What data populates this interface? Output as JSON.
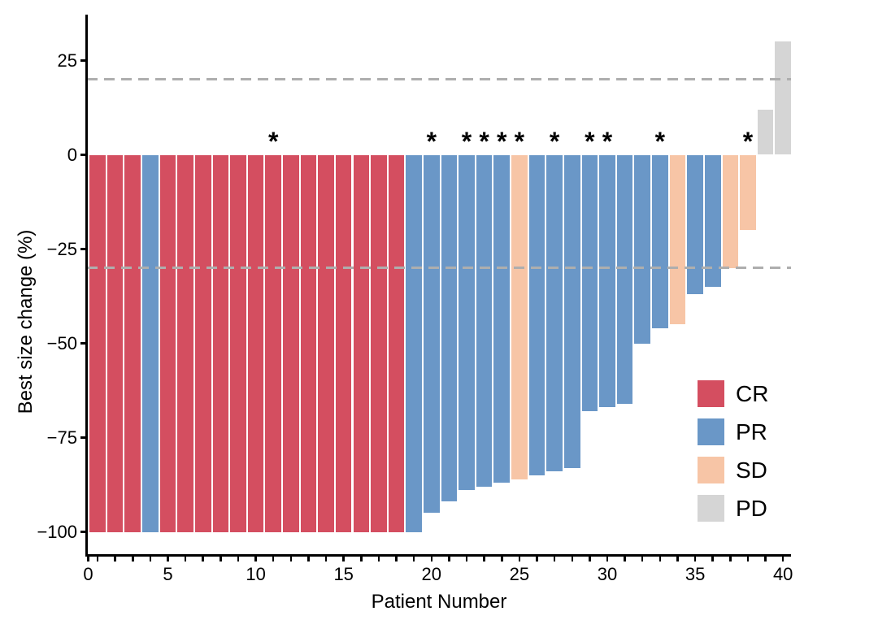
{
  "chart_data": {
    "type": "bar",
    "subtype": "waterfall",
    "title": "",
    "xlabel": "Patient Number",
    "ylabel": "Best size change (%)",
    "x_tick_values": [
      0,
      5,
      10,
      15,
      20,
      25,
      30,
      35,
      40
    ],
    "x_ticks": [
      "0",
      "5",
      "10",
      "15",
      "20",
      "25",
      "30",
      "35",
      "40"
    ],
    "y_tick_values": [
      25,
      0,
      -25,
      -50,
      -75,
      -100
    ],
    "y_ticks": [
      "25",
      "0",
      "−25",
      "−50",
      "−75",
      "−100"
    ],
    "xlim": [
      0,
      40.6
    ],
    "ylim": [
      -106,
      37
    ],
    "grid": false,
    "legend_position": "inside-right",
    "annotation_symbol": "*",
    "reference_lines": [
      {
        "y": 20,
        "style": "dashed",
        "color": "#aeaeae"
      },
      {
        "y": -30,
        "style": "dashed",
        "color": "#aeaeae"
      }
    ],
    "legend": [
      {
        "label": "CR",
        "color": "#d44e60"
      },
      {
        "label": "PR",
        "color": "#6a97c7"
      },
      {
        "label": "SD",
        "color": "#f7c5a6"
      },
      {
        "label": "PD",
        "color": "#d5d5d5"
      }
    ],
    "colors": {
      "CR": "#d44e60",
      "PR": "#6a97c7",
      "SD": "#f7c5a6",
      "PD": "#d5d5d5"
    },
    "patients": [
      {
        "patient": 1,
        "change": -100,
        "response": "CR",
        "starred": false
      },
      {
        "patient": 2,
        "change": -100,
        "response": "CR",
        "starred": false
      },
      {
        "patient": 3,
        "change": -100,
        "response": "CR",
        "starred": false
      },
      {
        "patient": 4,
        "change": -100,
        "response": "PR",
        "starred": false
      },
      {
        "patient": 5,
        "change": -100,
        "response": "CR",
        "starred": false
      },
      {
        "patient": 6,
        "change": -100,
        "response": "CR",
        "starred": false
      },
      {
        "patient": 7,
        "change": -100,
        "response": "CR",
        "starred": false
      },
      {
        "patient": 8,
        "change": -100,
        "response": "CR",
        "starred": false
      },
      {
        "patient": 9,
        "change": -100,
        "response": "CR",
        "starred": false
      },
      {
        "patient": 10,
        "change": -100,
        "response": "CR",
        "starred": false
      },
      {
        "patient": 11,
        "change": -100,
        "response": "CR",
        "starred": true
      },
      {
        "patient": 12,
        "change": -100,
        "response": "CR",
        "starred": false
      },
      {
        "patient": 13,
        "change": -100,
        "response": "CR",
        "starred": false
      },
      {
        "patient": 14,
        "change": -100,
        "response": "CR",
        "starred": false
      },
      {
        "patient": 15,
        "change": -100,
        "response": "CR",
        "starred": false
      },
      {
        "patient": 16,
        "change": -100,
        "response": "CR",
        "starred": false
      },
      {
        "patient": 17,
        "change": -100,
        "response": "CR",
        "starred": false
      },
      {
        "patient": 18,
        "change": -100,
        "response": "CR",
        "starred": false
      },
      {
        "patient": 19,
        "change": -100,
        "response": "PR",
        "starred": false
      },
      {
        "patient": 20,
        "change": -95,
        "response": "PR",
        "starred": true
      },
      {
        "patient": 21,
        "change": -92,
        "response": "PR",
        "starred": false
      },
      {
        "patient": 22,
        "change": -89,
        "response": "PR",
        "starred": true
      },
      {
        "patient": 23,
        "change": -88,
        "response": "PR",
        "starred": true
      },
      {
        "patient": 24,
        "change": -87,
        "response": "PR",
        "starred": true
      },
      {
        "patient": 25,
        "change": -86,
        "response": "SD",
        "starred": true
      },
      {
        "patient": 26,
        "change": -85,
        "response": "PR",
        "starred": false
      },
      {
        "patient": 27,
        "change": -84,
        "response": "PR",
        "starred": true
      },
      {
        "patient": 28,
        "change": -83,
        "response": "PR",
        "starred": false
      },
      {
        "patient": 29,
        "change": -68,
        "response": "PR",
        "starred": true
      },
      {
        "patient": 30,
        "change": -67,
        "response": "PR",
        "starred": true
      },
      {
        "patient": 31,
        "change": -66,
        "response": "PR",
        "starred": false
      },
      {
        "patient": 32,
        "change": -50,
        "response": "PR",
        "starred": false
      },
      {
        "patient": 33,
        "change": -46,
        "response": "PR",
        "starred": true
      },
      {
        "patient": 34,
        "change": -45,
        "response": "SD",
        "starred": false
      },
      {
        "patient": 35,
        "change": -37,
        "response": "PR",
        "starred": false
      },
      {
        "patient": 36,
        "change": -35,
        "response": "PR",
        "starred": false
      },
      {
        "patient": 37,
        "change": -30,
        "response": "SD",
        "starred": false
      },
      {
        "patient": 38,
        "change": -20,
        "response": "SD",
        "starred": true
      },
      {
        "patient": 39,
        "change": 12,
        "response": "PD",
        "starred": false
      },
      {
        "patient": 40,
        "change": 30,
        "response": "PD",
        "starred": false
      }
    ]
  }
}
